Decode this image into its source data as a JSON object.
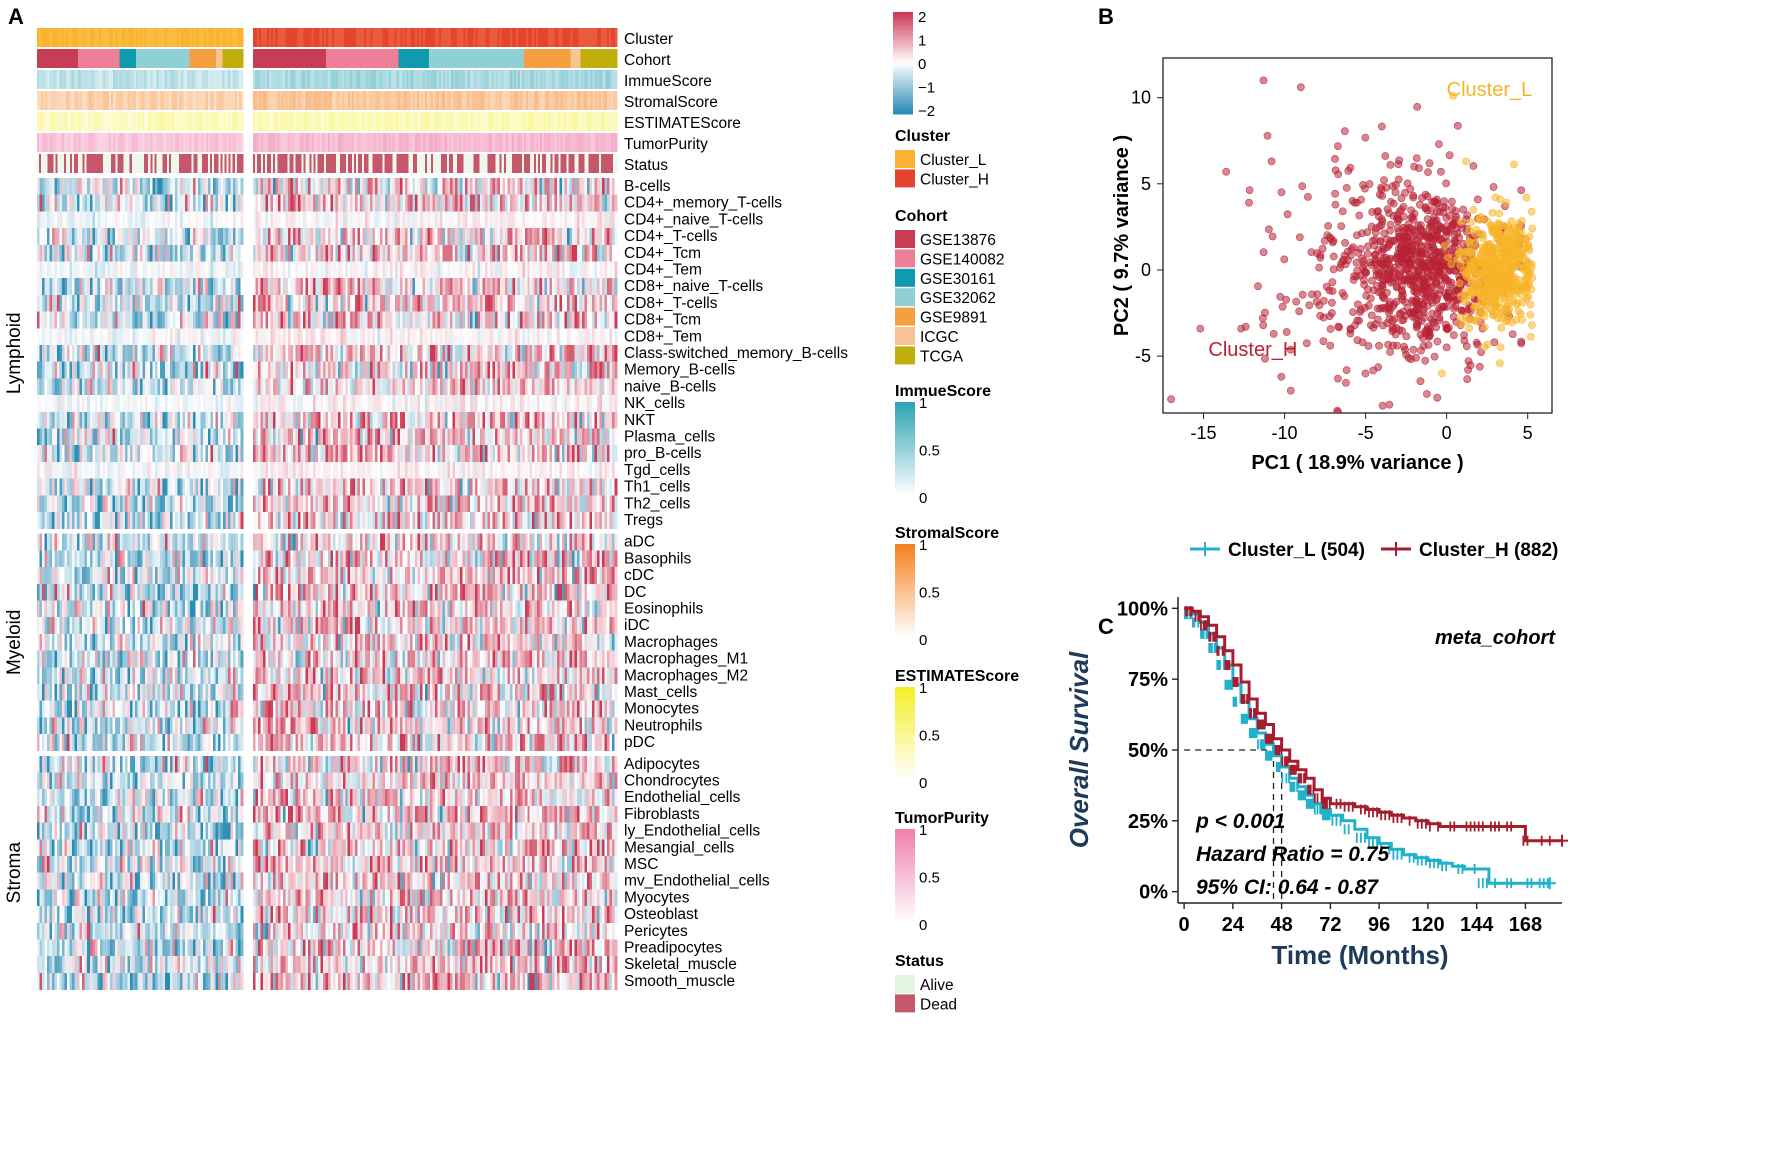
{
  "panels": {
    "a": "A",
    "b": "B",
    "c": "C"
  },
  "chart_data": [
    {
      "type": "heatmap",
      "panel": "A",
      "annotation_rows": [
        "Cluster",
        "Cohort",
        "ImmueScore",
        "StromalScore",
        "ESTIMATEScore",
        "TumorPurity",
        "Status"
      ],
      "column_groups": [
        "Cluster_L",
        "Cluster_H"
      ],
      "row_groups": [
        {
          "name": "Lymphoid",
          "rows": [
            "B-cells",
            "CD4+_memory_T-cells",
            "CD4+_naive_T-cells",
            "CD4+_T-cells",
            "CD4+_Tcm",
            "CD4+_Tem",
            "CD8+_naive_T-cells",
            "CD8+_T-cells",
            "CD8+_Tcm",
            "CD8+_Tem",
            "Class-switched_memory_B-cells",
            "Memory_B-cells",
            "naive_B-cells",
            "NK_cells",
            "NKT",
            "Plasma_cells",
            "pro_B-cells",
            "Tgd_cells",
            "Th1_cells",
            "Th2_cells",
            "Tregs"
          ]
        },
        {
          "name": "Myeloid",
          "rows": [
            "aDC",
            "Basophils",
            "cDC",
            "DC",
            "Eosinophils",
            "iDC",
            "Macrophages",
            "Macrophages_M1",
            "Macrophages_M2",
            "Mast_cells",
            "Monocytes",
            "Neutrophils",
            "pDC"
          ]
        },
        {
          "name": "Stroma",
          "rows": [
            "Adipocytes",
            "Chondrocytes",
            "Endothelial_cells",
            "Fibroblasts",
            "ly_Endothelial_cells",
            "Mesangial_cells",
            "MSC",
            "mv_Endothelial_cells",
            "Myocytes",
            "Osteoblast",
            "Pericytes",
            "Preadipocytes",
            "Skeletal_muscle",
            "Smooth_muscle"
          ]
        }
      ],
      "color_scale": {
        "ticks": [
          "2",
          "1",
          "0",
          "−1",
          "−2"
        ],
        "min": -2,
        "max": 2,
        "low": "#2b8cb4",
        "mid": "#ffffff",
        "high": "#cc3a55"
      },
      "legends": [
        {
          "title": "Cluster",
          "kind": "categorical",
          "items": [
            {
              "label": "Cluster_L",
              "color": "#f9b232"
            },
            {
              "label": "Cluster_H",
              "color": "#e5452f"
            }
          ]
        },
        {
          "title": "Cohort",
          "kind": "categorical",
          "items": [
            {
              "label": "GSE13876",
              "color": "#c73d55"
            },
            {
              "label": "GSE140082",
              "color": "#ee7f99"
            },
            {
              "label": "GSE30161",
              "color": "#0f9aad"
            },
            {
              "label": "GSE32062",
              "color": "#8fcfd6"
            },
            {
              "label": "GSE9891",
              "color": "#f4a040"
            },
            {
              "label": "ICGC",
              "color": "#f8c392"
            },
            {
              "label": "TCGA",
              "color": "#bfae0c"
            }
          ]
        },
        {
          "title": "ImmueScore",
          "kind": "continuous",
          "ticks": [
            "1",
            "0.5",
            "0"
          ],
          "color": "#2fa3b3"
        },
        {
          "title": "StromalScore",
          "kind": "continuous",
          "ticks": [
            "1",
            "0.5",
            "0"
          ],
          "color": "#f58220"
        },
        {
          "title": "ESTIMATEScore",
          "kind": "continuous",
          "ticks": [
            "1",
            "0.5",
            "0"
          ],
          "color": "#f4ef2a"
        },
        {
          "title": "TumorPurity",
          "kind": "continuous",
          "ticks": [
            "1",
            "0.5",
            "0"
          ],
          "color": "#f080ae"
        },
        {
          "title": "Status",
          "kind": "categorical",
          "items": [
            {
              "label": "Alive",
              "color": "#e3f5e1"
            },
            {
              "label": "Dead",
              "color": "#c6566a"
            }
          ]
        }
      ]
    },
    {
      "type": "scatter",
      "panel": "B",
      "xlabel": "PC1 ( 18.9% variance )",
      "ylabel": "PC2 ( 9.7% variance )",
      "xlim": [
        -17.5,
        6.5
      ],
      "ylim": [
        -8.3,
        12.3
      ],
      "xticks": [
        -15,
        -10,
        -5,
        0,
        5
      ],
      "yticks": [
        -5,
        0,
        5,
        10
      ],
      "series": [
        {
          "name": "Cluster_H",
          "label": "Cluster_H",
          "color": "#b82235",
          "n": 882,
          "center": [
            -1.5,
            0.2
          ],
          "label_pos": [
            -14.7,
            -5
          ],
          "outliers": [
            [
              -17,
              -7.5
            ],
            [
              -15.2,
              -3.4
            ],
            [
              -13.6,
              5.7
            ],
            [
              -11.3,
              11
            ],
            [
              -10.8,
              6.3
            ],
            [
              -9,
              10.6
            ],
            [
              -12.4,
              -3.3
            ],
            [
              -10.2,
              -6.2
            ]
          ]
        },
        {
          "name": "Cluster_L",
          "label": "Cluster_L",
          "color": "#f7b428",
          "n": 504,
          "center": [
            3.2,
            0
          ],
          "label_pos": [
            0,
            10.1
          ],
          "outliers": [
            [
              0.4,
              10.1
            ],
            [
              1.2,
              6.3
            ],
            [
              -0.3,
              -6
            ]
          ]
        }
      ]
    },
    {
      "type": "line",
      "panel": "C",
      "subtype": "kaplan-meier",
      "title": "meta_cohort",
      "xlabel": "Time (Months)",
      "ylabel": "Overall Survival",
      "xlim": [
        -3,
        186
      ],
      "ylim": [
        -0.04,
        1.04
      ],
      "xticks": [
        "0",
        "24",
        "48",
        "72",
        "96",
        "120",
        "144",
        "168"
      ],
      "yticks": [
        "0%",
        "25%",
        "50%",
        "75%",
        "100%"
      ],
      "series": [
        {
          "name": "Cluster_L (504)",
          "color": "#21b1cb",
          "x": [
            0,
            4,
            8,
            12,
            16,
            20,
            24,
            28,
            32,
            36,
            40,
            44,
            48,
            52,
            56,
            60,
            64,
            68,
            72,
            78,
            84,
            90,
            96,
            102,
            108,
            114,
            120,
            126,
            132,
            138,
            144,
            150,
            156,
            162,
            168,
            174,
            180
          ],
          "y": [
            1.0,
            0.98,
            0.95,
            0.91,
            0.86,
            0.8,
            0.73,
            0.67,
            0.61,
            0.56,
            0.52,
            0.48,
            0.44,
            0.4,
            0.37,
            0.34,
            0.31,
            0.29,
            0.27,
            0.25,
            0.22,
            0.19,
            0.17,
            0.15,
            0.13,
            0.12,
            0.11,
            0.1,
            0.09,
            0.08,
            0.08,
            0.03,
            0.03,
            0.03,
            0.03,
            0.03,
            0.03
          ]
        },
        {
          "name": "Cluster_H (882)",
          "color": "#a41e2f",
          "x": [
            0,
            4,
            8,
            12,
            16,
            20,
            24,
            28,
            32,
            36,
            40,
            44,
            48,
            52,
            56,
            60,
            64,
            68,
            72,
            78,
            84,
            90,
            96,
            102,
            108,
            114,
            120,
            126,
            132,
            138,
            144,
            150,
            156,
            162,
            168,
            174,
            186
          ],
          "y": [
            1.0,
            0.99,
            0.97,
            0.94,
            0.9,
            0.85,
            0.8,
            0.74,
            0.68,
            0.63,
            0.59,
            0.54,
            0.5,
            0.46,
            0.43,
            0.4,
            0.36,
            0.33,
            0.31,
            0.31,
            0.3,
            0.29,
            0.28,
            0.27,
            0.26,
            0.25,
            0.24,
            0.23,
            0.23,
            0.23,
            0.23,
            0.23,
            0.23,
            0.23,
            0.18,
            0.18,
            0.18
          ]
        }
      ],
      "median_guides": {
        "y": 0.5,
        "x_l": 44,
        "x_h": 48
      },
      "annotations": [
        "p < 0.001",
        "Hazard Ratio = 0.75",
        "95% CI: 0.64 - 0.87"
      ]
    }
  ]
}
